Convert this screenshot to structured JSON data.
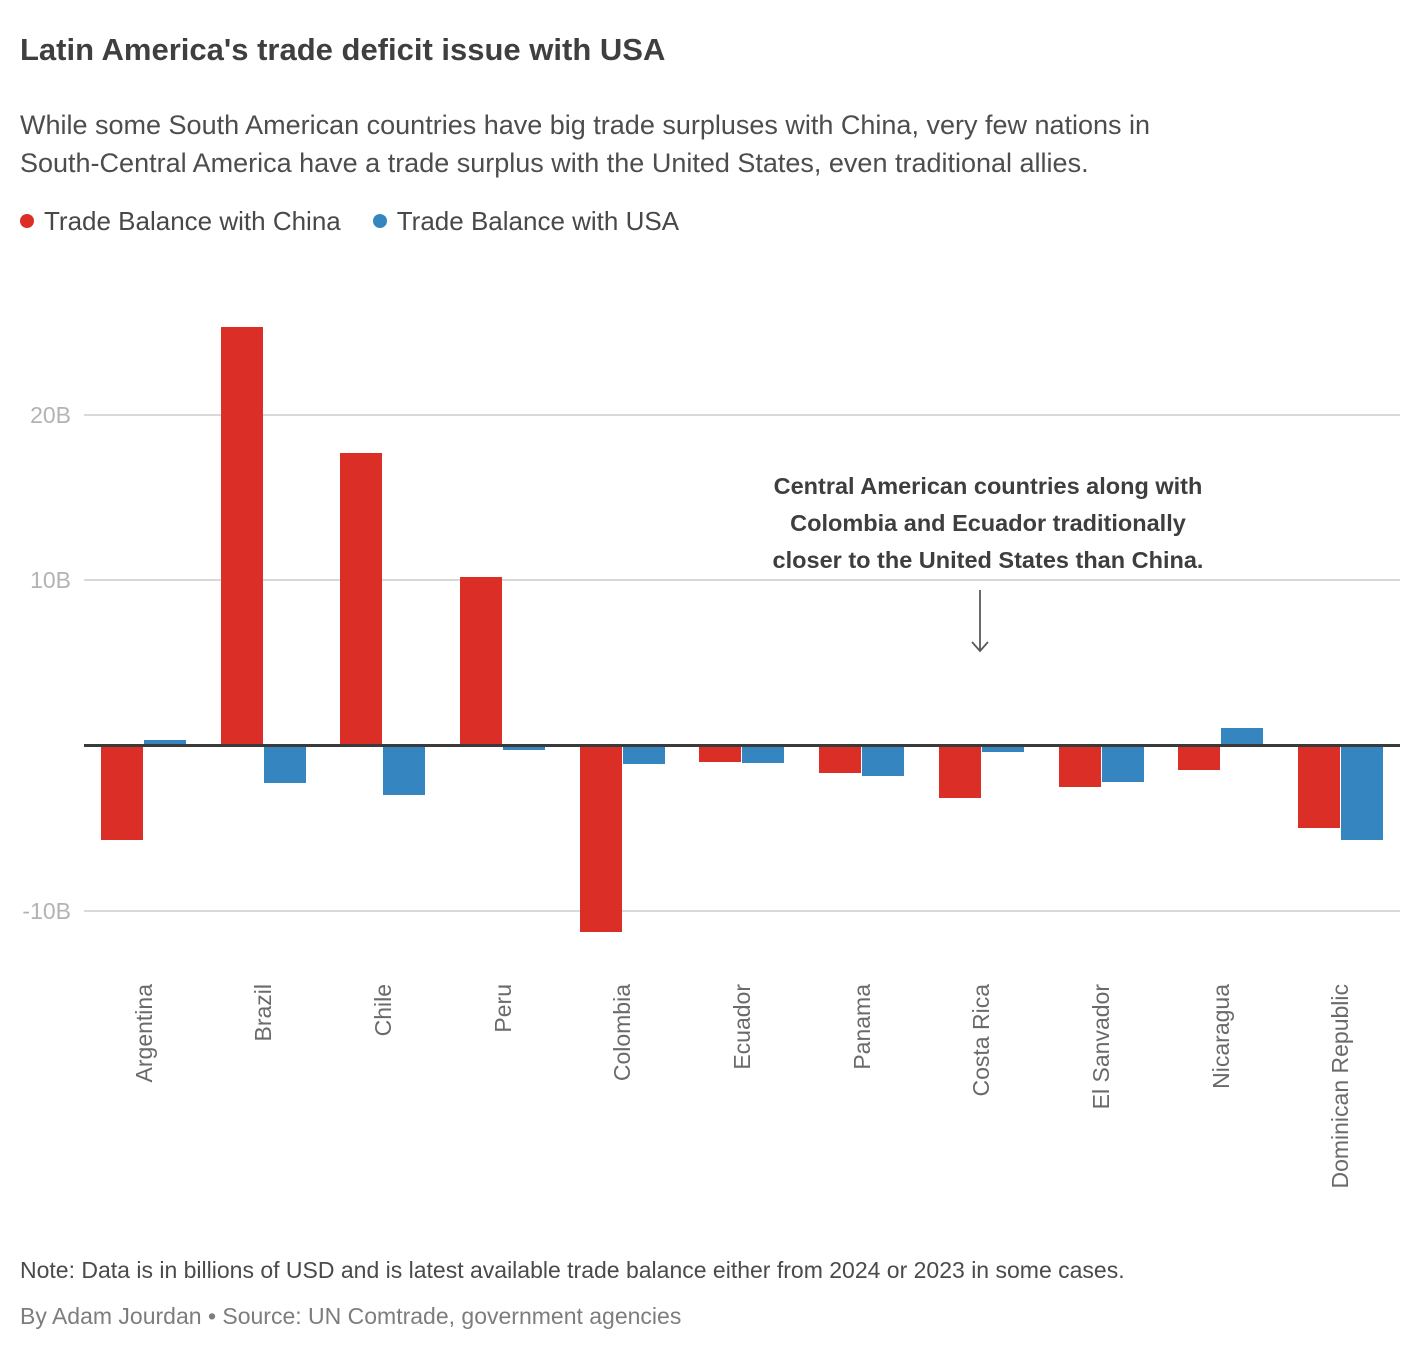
{
  "header": {
    "title": "Latin America's trade deficit issue with USA",
    "subtitle": "While some South American countries have big trade surpluses with China, very few nations in\nSouth-Central America have a trade surplus with the United States, even traditional allies."
  },
  "legend": {
    "items": [
      {
        "key": "china",
        "label": "Trade Balance with China"
      },
      {
        "key": "usa",
        "label": "Trade Balance with USA"
      }
    ]
  },
  "annotation": {
    "text": "Central American countries along with\nColombia and Ecuador traditionally\ncloser to the United States than China."
  },
  "footer": {
    "note": "Note: Data is in billions of USD and is latest available trade balance either from 2024 or 2023 in some cases.",
    "byline": "By Adam Jourdan • Source: UN Comtrade, government agencies"
  },
  "colors": {
    "china": "#db2e26",
    "usa": "#3585c1",
    "grid": "#d9d9d9",
    "zero_line": "#3a3a3a",
    "tick_label": "#b3b3b3",
    "x_label": "#6a6a6a"
  },
  "chart_data": {
    "type": "bar",
    "title": "Latin America's trade deficit issue with USA",
    "unit": "billions of USD",
    "ylabel": "",
    "xlabel": "",
    "ylim": [
      -12.5,
      26.5
    ],
    "grid": "horizontal",
    "legend_position": "top",
    "categories": [
      "Argentina",
      "Brazil",
      "Chile",
      "Peru",
      "Colombia",
      "Ecuador",
      "Panama",
      "Costa Rica",
      "El Sanvador",
      "Nicaragua",
      "Dominican Republic"
    ],
    "series": [
      {
        "key": "china",
        "name": "Trade Balance with China",
        "values": [
          -5.6,
          25.2,
          17.6,
          10.1,
          -11.2,
          -0.9,
          -1.6,
          -3.1,
          -2.4,
          -1.4,
          -4.9
        ]
      },
      {
        "key": "usa",
        "name": "Trade Balance with USA",
        "values": [
          0.25,
          -2.2,
          -2.9,
          -0.2,
          -1.0,
          -0.95,
          -1.75,
          -0.3,
          -2.1,
          0.95,
          -5.6
        ]
      }
    ],
    "y_ticks": [
      {
        "label": "20B",
        "value": 20
      },
      {
        "label": "10B",
        "value": 10
      },
      {
        "label": "-10B",
        "value": -10
      }
    ]
  }
}
